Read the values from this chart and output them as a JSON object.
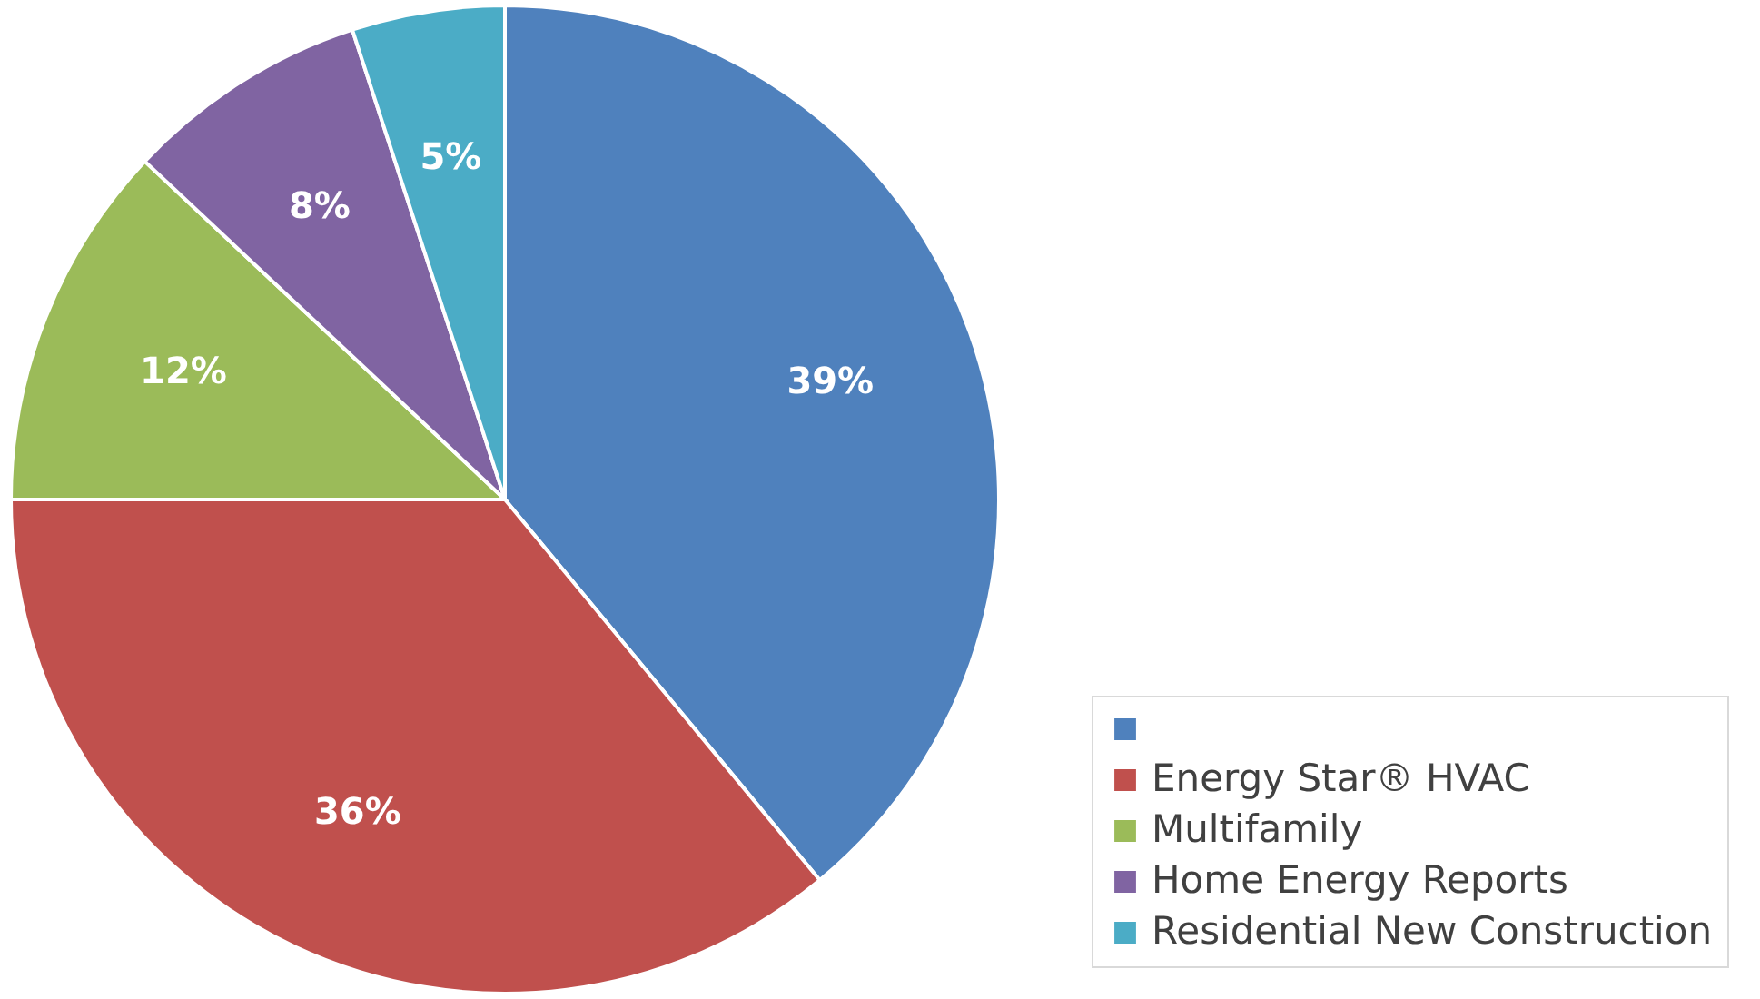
{
  "chart_data": {
    "type": "pie",
    "categories": [
      null,
      "Energy Star® HVAC",
      "Multifamily",
      "Home Energy Reports",
      "Residential New Construction"
    ],
    "values": [
      39,
      36,
      12,
      8,
      5
    ],
    "colors": [
      "#4f81bd",
      "#c0504d",
      "#9bbb59",
      "#8064a2",
      "#4bacc6"
    ],
    "value_labels": [
      "39%",
      "36%",
      "12%",
      "8%",
      "5%"
    ],
    "legend": "bottom right"
  }
}
